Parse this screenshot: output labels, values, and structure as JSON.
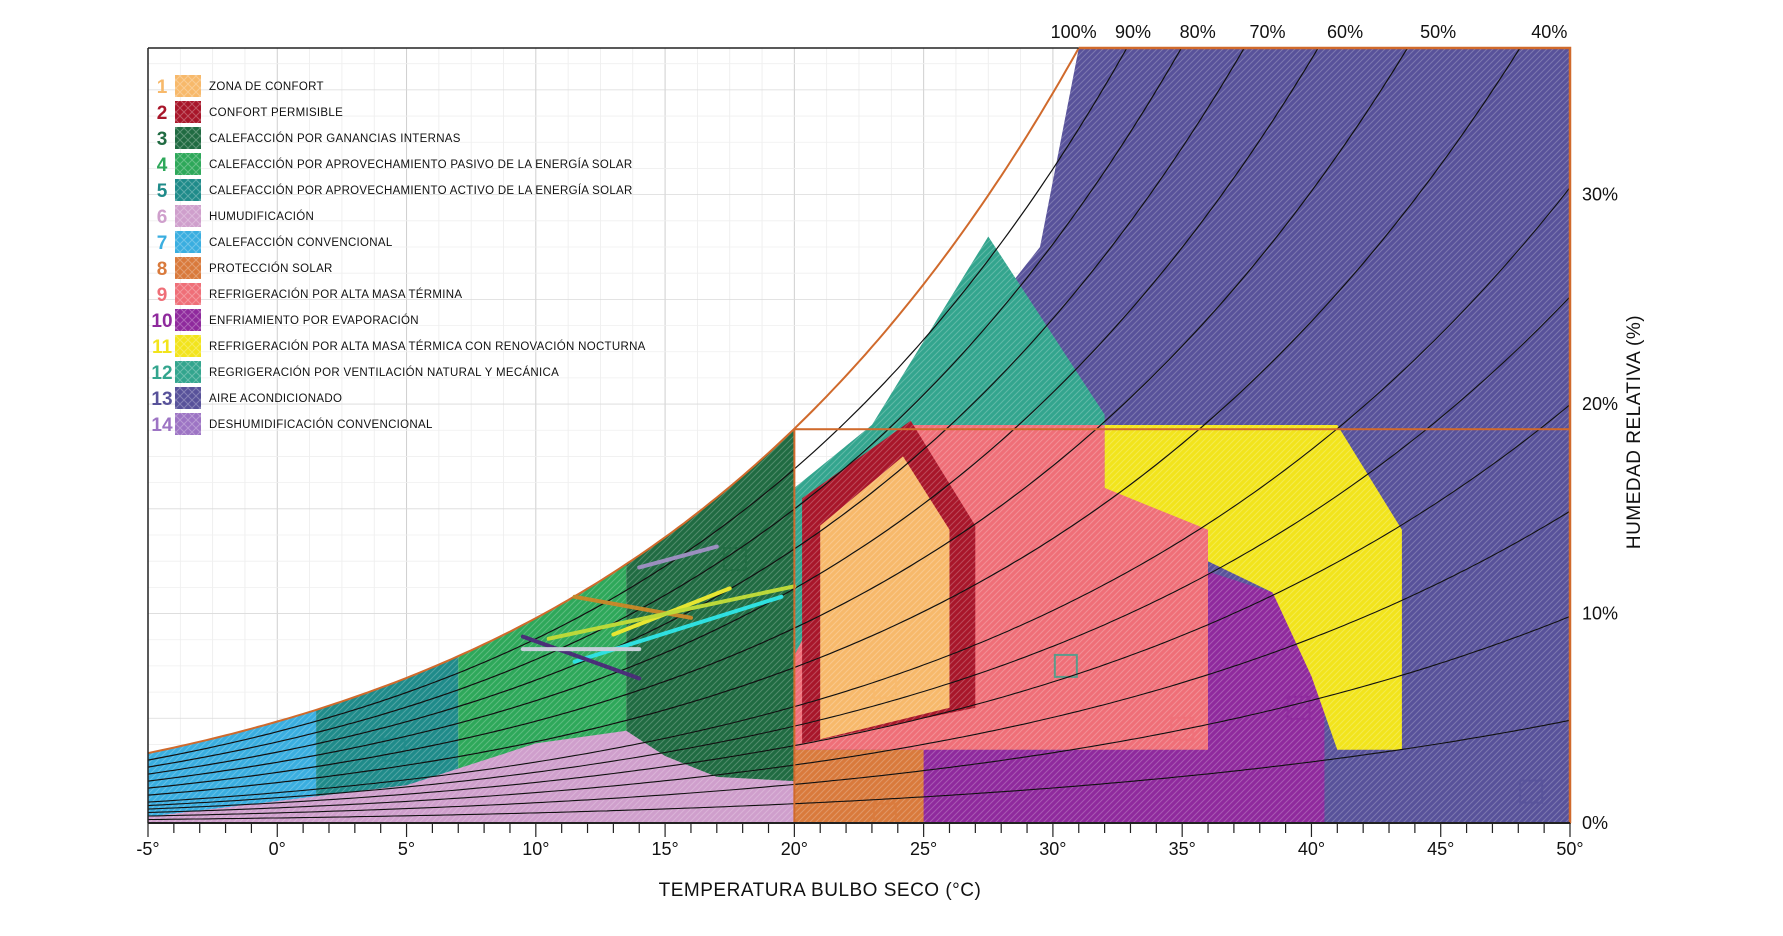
{
  "chart_data": {
    "type": "area",
    "title": "",
    "xlabel": "TEMPERATURA BULBO SECO (°C)",
    "ylabel": "HUMEDAD RELATIVA (%)",
    "xlim": [
      -5,
      50
    ],
    "ylim": [
      0,
      37
    ],
    "x_ticks": [
      "-5°",
      "0°",
      "5°",
      "10°",
      "15°",
      "20°",
      "25°",
      "30°",
      "35°",
      "40°",
      "45°",
      "50°"
    ],
    "x_tick_values": [
      -5,
      0,
      5,
      10,
      15,
      20,
      25,
      30,
      35,
      40,
      45,
      50
    ],
    "right_axis_ticks": [
      "0%",
      "10%",
      "20%",
      "30%"
    ],
    "right_axis_values": [
      0,
      10,
      20,
      30
    ],
    "rh_curve_labels": [
      "100%",
      "90%",
      "80%",
      "70%",
      "60%",
      "50%",
      "40%"
    ],
    "rh_curve_values": [
      100,
      90,
      80,
      70,
      60,
      50,
      40
    ],
    "colors": {
      "frame": "#d06a2c",
      "zone1": "#f7b96b",
      "zone2": "#a8162a",
      "zone3": "#206b42",
      "zone4": "#2ea85a",
      "zone5": "#1f8b8a",
      "zone6": "#cf9fcc",
      "zone7": "#3aaee0",
      "zone8": "#d97a3c",
      "zone9": "#ef6f78",
      "zone10": "#8f2a9d",
      "zone11": "#f2e41c",
      "zone12": "#33a58e",
      "zone13": "#58529a",
      "zone14": "#9d74c4"
    },
    "legend": [
      {
        "num": "1",
        "label": "ZONA DE CONFORT",
        "color": "#f7b96b"
      },
      {
        "num": "2",
        "label": "CONFORT PERMISIBLE",
        "color": "#a8162a"
      },
      {
        "num": "3",
        "label": "CALEFACCIÓN POR GANANCIAS INTERNAS",
        "color": "#206b42"
      },
      {
        "num": "4",
        "label": "CALEFACCIÓN POR APROVECHAMIENTO PASIVO DE LA ENERGÍA SOLAR",
        "color": "#2ea85a"
      },
      {
        "num": "5",
        "label": "CALEFACCIÓN POR APROVECHAMIENTO ACTIVO DE LA ENERGÍA SOLAR",
        "color": "#1f8b8a"
      },
      {
        "num": "6",
        "label": "HUMUDIFICACIÓN",
        "color": "#cf9fcc"
      },
      {
        "num": "7",
        "label": "CALEFACCIÓN CONVENCIONAL",
        "color": "#3aaee0"
      },
      {
        "num": "8",
        "label": "PROTECCIÓN SOLAR",
        "color": "#d97a3c"
      },
      {
        "num": "9",
        "label": "REFRIGERACIÓN POR ALTA MASA TÉRMINA",
        "color": "#ef6f78"
      },
      {
        "num": "10",
        "label": "ENFRIAMIENTO POR EVAPORACIÓN",
        "color": "#8f2a9d"
      },
      {
        "num": "11",
        "label": "REFRIGERACIÓN POR ALTA MASA TÉRMICA CON RENOVACIÓN NOCTURNA",
        "color": "#f2e41c"
      },
      {
        "num": "12",
        "label": "REGRIGERACIÓN POR VENTILACIÓN NATURAL Y MECÁNICA",
        "color": "#33a58e"
      },
      {
        "num": "13",
        "label": "AIRE ACONDICIONADO",
        "color": "#58529a"
      },
      {
        "num": "14",
        "label": "DESHUMIDIFICACIÓN CONVENCIONAL",
        "color": "#9d74c4"
      }
    ],
    "zones": [
      {
        "id": "z7",
        "color": "#3aaee0",
        "type": "sat",
        "x0": -5,
        "x1": 1.5
      },
      {
        "id": "z5",
        "color": "#1f8b8a",
        "type": "sat",
        "x0": 1.5,
        "x1": 7
      },
      {
        "id": "z4",
        "color": "#2ea85a",
        "type": "sat",
        "x0": 7,
        "x1": 13.5
      },
      {
        "id": "z3",
        "color": "#206b42",
        "type": "sat",
        "x0": 13.5,
        "x1": 20
      },
      {
        "id": "z13",
        "color": "#58529a",
        "type": "poly",
        "points": [
          [
            20,
            15
          ],
          [
            22,
            18
          ],
          [
            26,
            22
          ],
          [
            29.5,
            27.5
          ],
          [
            31,
            37
          ],
          [
            50,
            37
          ],
          [
            50,
            0
          ],
          [
            20,
            0
          ]
        ]
      },
      {
        "id": "z12",
        "color": "#33a58e",
        "type": "poly",
        "points": [
          [
            20,
            16
          ],
          [
            23,
            19
          ],
          [
            27.5,
            28
          ],
          [
            32,
            19.5
          ],
          [
            32,
            7.5
          ],
          [
            20,
            7.5
          ]
        ]
      },
      {
        "id": "z10",
        "color": "#8f2a9d",
        "type": "poly",
        "points": [
          [
            20,
            3.5
          ],
          [
            36,
            3.5
          ],
          [
            36,
            12
          ],
          [
            38.5,
            11
          ],
          [
            40.5,
            6
          ],
          [
            40.5,
            0
          ],
          [
            20,
            0
          ]
        ]
      },
      {
        "id": "z11",
        "color": "#f2e41c",
        "type": "poly",
        "points": [
          [
            32,
            19
          ],
          [
            41,
            19
          ],
          [
            43.5,
            14
          ],
          [
            43.5,
            3.5
          ],
          [
            41,
            3.5
          ],
          [
            40,
            7
          ],
          [
            38.5,
            11
          ],
          [
            36,
            12.5
          ],
          [
            32,
            16
          ]
        ]
      },
      {
        "id": "z9",
        "color": "#ef6f78",
        "type": "poly",
        "points": [
          [
            20,
            3.5
          ],
          [
            36,
            3.5
          ],
          [
            36,
            14
          ],
          [
            32,
            16
          ],
          [
            32,
            19
          ],
          [
            24.5,
            19
          ],
          [
            20,
            8
          ]
        ]
      },
      {
        "id": "z6",
        "color": "#cf9fcc",
        "type": "poly",
        "points": [
          [
            -5,
            0.3
          ],
          [
            5,
            1.8
          ],
          [
            10,
            3.8
          ],
          [
            13.5,
            4.4
          ],
          [
            15,
            3.2
          ],
          [
            17,
            2.2
          ],
          [
            20,
            2
          ],
          [
            22,
            1.5
          ],
          [
            24,
            0.6
          ],
          [
            25,
            0
          ],
          [
            -5,
            0
          ]
        ]
      },
      {
        "id": "z8",
        "color": "#d97a3c",
        "type": "poly",
        "points": [
          [
            20,
            3.5
          ],
          [
            25,
            3.5
          ],
          [
            25,
            0
          ],
          [
            20,
            0
          ]
        ]
      },
      {
        "id": "z2",
        "color": "#a8162a",
        "type": "poly",
        "points": [
          [
            20.3,
            15.5
          ],
          [
            24.5,
            19.2
          ],
          [
            27,
            14.2
          ],
          [
            27,
            5.5
          ],
          [
            20.3,
            3.8
          ]
        ]
      },
      {
        "id": "z1",
        "color": "#f7b96b",
        "type": "poly",
        "points": [
          [
            21,
            14.2
          ],
          [
            24.2,
            17.5
          ],
          [
            26,
            14
          ],
          [
            26,
            5.5
          ],
          [
            21,
            4
          ]
        ]
      }
    ],
    "climate_lines": [
      {
        "color": "#9b8fbf",
        "points": [
          [
            14,
            12.2
          ],
          [
            17,
            13.2
          ]
        ]
      },
      {
        "color": "#c4882a",
        "points": [
          [
            11.5,
            10.8
          ],
          [
            16,
            9.8
          ]
        ]
      },
      {
        "color": "#e7e632",
        "points": [
          [
            13,
            9
          ],
          [
            17.5,
            11.2
          ]
        ]
      },
      {
        "color": "#bcd93a",
        "points": [
          [
            10.5,
            8.8
          ],
          [
            20,
            11.3
          ]
        ]
      },
      {
        "color": "#2fe0e0",
        "points": [
          [
            11.5,
            7.7
          ],
          [
            19.5,
            10.8
          ]
        ]
      },
      {
        "color": "#4a2f78",
        "points": [
          [
            9.5,
            8.9
          ],
          [
            14,
            6.9
          ]
        ]
      },
      {
        "color": "#c6ced8",
        "points": [
          [
            9.5,
            8.3
          ],
          [
            14,
            8.3
          ]
        ]
      }
    ]
  }
}
